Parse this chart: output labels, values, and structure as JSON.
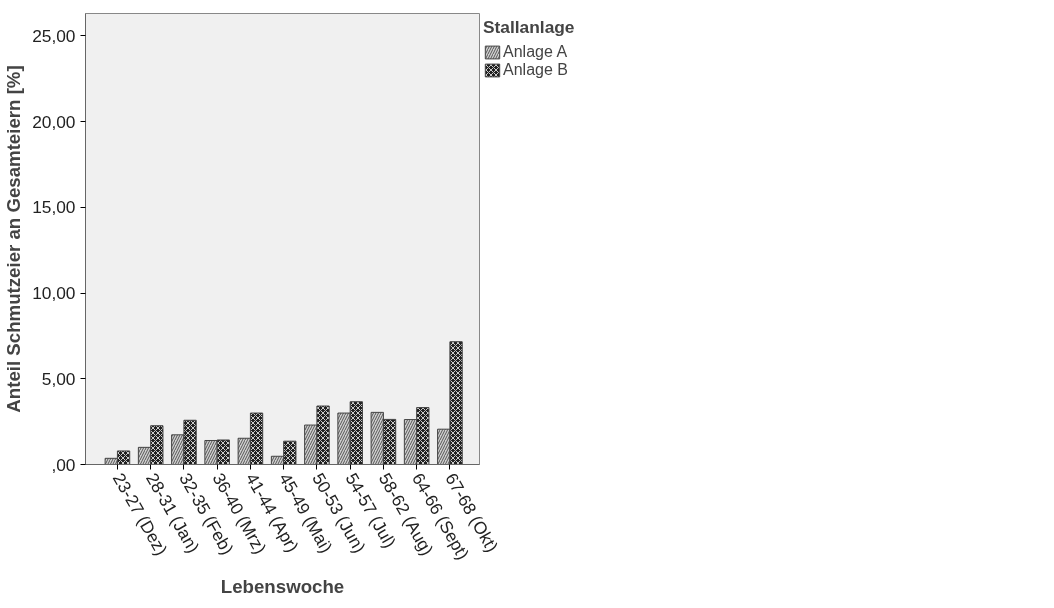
{
  "chart_data": {
    "type": "bar",
    "xlabel": "Lebenswoche",
    "ylabel": "Anteil Schmutzeier an Gesamteiern [%]",
    "legend_title": "Stallanlage",
    "categories": [
      "23-27 (Dez)",
      "28-31 (Jan)",
      "32-35 (Feb)",
      "36-40 (Mrz)",
      "41-44 (Apr)",
      "45-49 (Mai)",
      "50-53 (Jun)",
      "54-57 (Jul)",
      "58-62 (Aug)",
      "64-66 (Sept)",
      "67-68 (Okt)"
    ],
    "series": [
      {
        "name": "Anlage A",
        "color": "#d0d0d0",
        "values": [
          0.36,
          1.0,
          1.73,
          1.4,
          1.53,
          0.48,
          2.3,
          3.0,
          3.04,
          2.62,
          2.06
        ]
      },
      {
        "name": "Anlage B",
        "color": "#202020",
        "values": [
          0.79,
          2.26,
          2.58,
          1.43,
          3.0,
          1.36,
          3.41,
          3.66,
          2.63,
          3.32,
          7.16
        ]
      }
    ],
    "ylim": [
      0,
      26.3
    ],
    "yticks": [
      {
        "value": 0,
        "label": ",00"
      },
      {
        "value": 5,
        "label": "5,00"
      },
      {
        "value": 10,
        "label": "10,00"
      },
      {
        "value": 15,
        "label": "15,00"
      },
      {
        "value": 20,
        "label": "20,00"
      },
      {
        "value": 25,
        "label": "25,00"
      }
    ],
    "grid": false,
    "legend": "top right"
  }
}
